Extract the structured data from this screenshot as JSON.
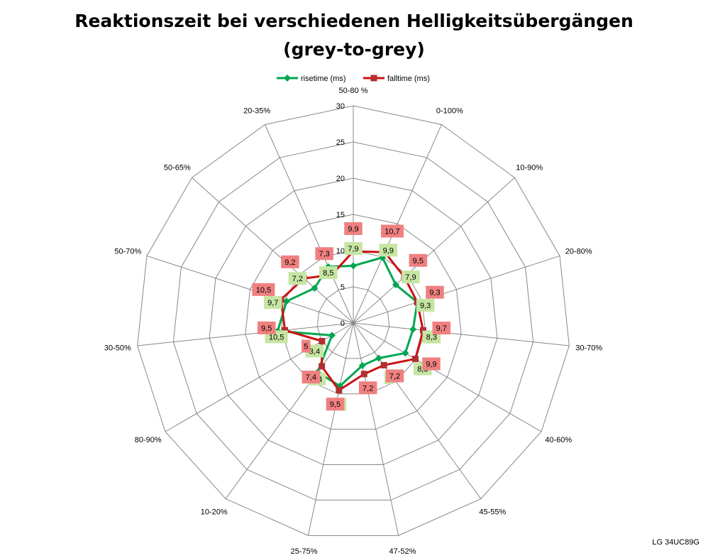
{
  "title_line1": "Reaktionszeit bei verschiedenen Helligkeitsübergängen",
  "title_line2": "(grey-to-grey)",
  "footer": "LG 34UC89G",
  "colors": {
    "rise": "#00A650",
    "fall": "#CC1111",
    "rise_label_bg": "#C6E5A3",
    "fall_label_bg": "#F08080",
    "grid": "#888888"
  },
  "chart_data": {
    "type": "radar",
    "categories": [
      "50-80 %",
      "0-100%",
      "10-90%",
      "20-80%",
      "30-70%",
      "40-60%",
      "45-55%",
      "47-52%",
      "25-75%",
      "10-20%",
      "80-90%",
      "30-50%",
      "50-70%",
      "50-65%",
      "20-35%"
    ],
    "rmax": 30,
    "ticks": [
      0,
      5,
      10,
      15,
      20,
      25,
      30
    ],
    "series": [
      {
        "name": "risetime (ms)",
        "values": [
          7.9,
          9.9,
          7.9,
          9.3,
          8.3,
          8.3,
          6,
          6,
          8.9,
          8.4,
          3.4,
          10.5,
          9.7,
          7.2,
          8.5
        ]
      },
      {
        "name": "falltime (ms)",
        "values": [
          9.9,
          10.7,
          9.5,
          9.3,
          9.7,
          9.9,
          7.2,
          7.2,
          9.5,
          7.4,
          5,
          9.5,
          10.5,
          9.2,
          7.3
        ]
      }
    ],
    "legend_position": "top"
  }
}
